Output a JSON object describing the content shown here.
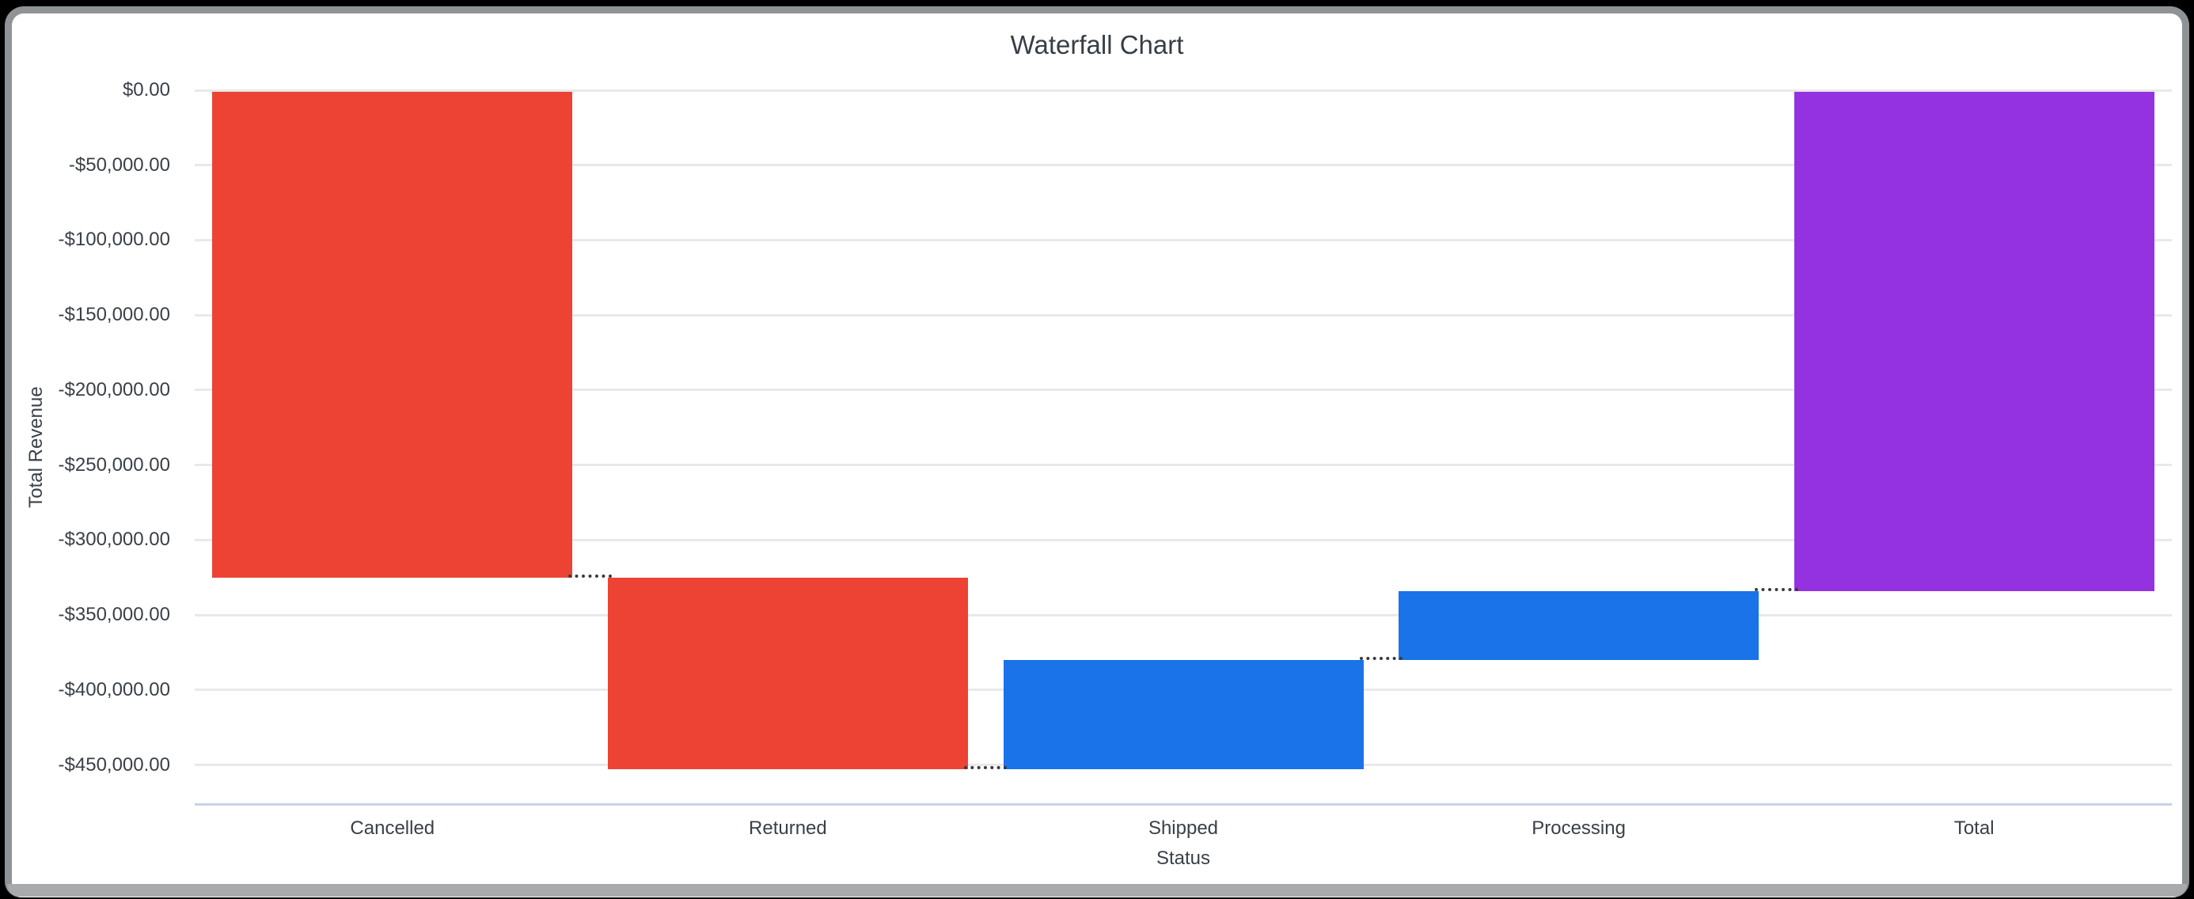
{
  "chart_data": {
    "type": "bar",
    "variant": "waterfall",
    "title": "Waterfall Chart",
    "xlabel": "Status",
    "ylabel": "Total Revenue",
    "categories": [
      "Cancelled",
      "Returned",
      "Shipped",
      "Processing",
      "Total"
    ],
    "series": [
      {
        "name": "Cancelled",
        "start": 0,
        "end": -325000,
        "delta": -325000,
        "color": "#EC4335",
        "role": "decrease"
      },
      {
        "name": "Returned",
        "start": -325000,
        "end": -453000,
        "delta": -128000,
        "color": "#EC4335",
        "role": "decrease"
      },
      {
        "name": "Shipped",
        "start": -453000,
        "end": -380000,
        "delta": 73000,
        "color": "#1A73E8",
        "role": "increase"
      },
      {
        "name": "Processing",
        "start": -380000,
        "end": -334000,
        "delta": 46000,
        "color": "#1A73E8",
        "role": "increase"
      },
      {
        "name": "Total",
        "start": 0,
        "end": -334000,
        "delta": -334000,
        "color": "#9432E2",
        "role": "total"
      }
    ],
    "y_ticks": [
      {
        "label": "$0.00",
        "value": 0
      },
      {
        "label": "-$50,000.00",
        "value": -50000
      },
      {
        "label": "-$100,000.00",
        "value": -100000
      },
      {
        "label": "-$150,000.00",
        "value": -150000
      },
      {
        "label": "-$200,000.00",
        "value": -200000
      },
      {
        "label": "-$250,000.00",
        "value": -250000
      },
      {
        "label": "-$300,000.00",
        "value": -300000
      },
      {
        "label": "-$350,000.00",
        "value": -350000
      },
      {
        "label": "-$400,000.00",
        "value": -400000
      },
      {
        "label": "-$450,000.00",
        "value": -450000
      }
    ],
    "ylim": [
      -476000,
      0
    ],
    "grid": true,
    "legend": false,
    "connector_style": "dotted",
    "colors": {
      "decrease": "#EC4335",
      "increase": "#1A73E8",
      "total": "#9432E2",
      "gridline": "#E9E9E9",
      "axis_line": "#C9D2E4",
      "connector": "#3B3B3B",
      "text": "#3A4048"
    }
  }
}
